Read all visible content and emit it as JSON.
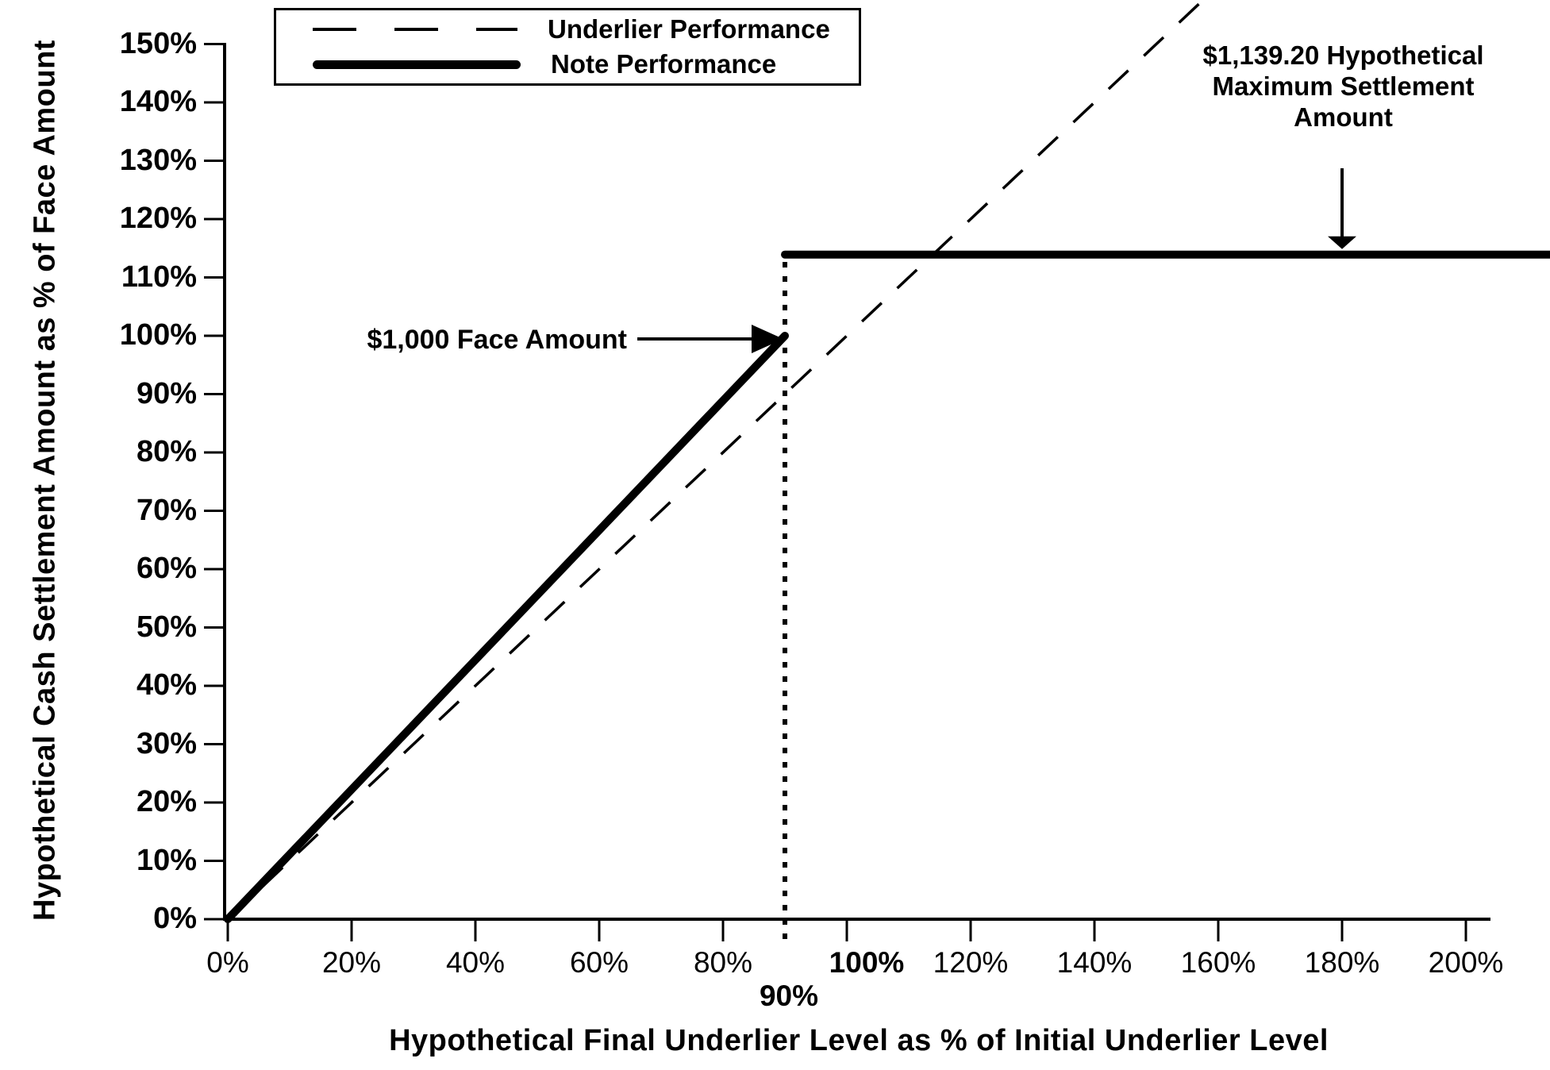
{
  "page": {
    "background": "#ffffff",
    "ink": "#000000"
  },
  "chart_data": {
    "type": "line",
    "title": "",
    "xlabel": "Hypothetical Final Underlier Level as % of Initial Underlier Level",
    "ylabel": "Hypothetical Cash Settlement Amount as % of Face Amount",
    "xlim": [
      0,
      208
    ],
    "ylim": [
      0,
      150
    ],
    "grid": false,
    "x_axis": {
      "title": "Hypothetical Final Underlier Level as % of Initial Underlier Level",
      "ticks": [
        {
          "value": 0,
          "label": "0%",
          "bold": false
        },
        {
          "value": 20,
          "label": "20%",
          "bold": false
        },
        {
          "value": 40,
          "label": "40%",
          "bold": false
        },
        {
          "value": 60,
          "label": "60%",
          "bold": false
        },
        {
          "value": 80,
          "label": "80%",
          "bold": false
        },
        {
          "value": 100,
          "label": "100%",
          "bold": true
        },
        {
          "value": 120,
          "label": "120%",
          "bold": false
        },
        {
          "value": 140,
          "label": "140%",
          "bold": false
        },
        {
          "value": 160,
          "label": "160%",
          "bold": false
        },
        {
          "value": 180,
          "label": "180%",
          "bold": false
        },
        {
          "value": 200,
          "label": "200%",
          "bold": false
        }
      ],
      "extra_labels": [
        {
          "value": 90,
          "label": "90%",
          "bold": true
        }
      ]
    },
    "y_axis": {
      "title": "Hypothetical Cash Settlement Amount as % of Face Amount",
      "ticks": [
        {
          "value": 0,
          "label": "0%"
        },
        {
          "value": 10,
          "label": "10%"
        },
        {
          "value": 20,
          "label": "20%"
        },
        {
          "value": 30,
          "label": "30%"
        },
        {
          "value": 40,
          "label": "40%"
        },
        {
          "value": 50,
          "label": "50%"
        },
        {
          "value": 60,
          "label": "60%"
        },
        {
          "value": 70,
          "label": "70%"
        },
        {
          "value": 80,
          "label": "80%"
        },
        {
          "value": 90,
          "label": "90%"
        },
        {
          "value": 100,
          "label": "100%"
        },
        {
          "value": 110,
          "label": "110%"
        },
        {
          "value": 120,
          "label": "120%"
        },
        {
          "value": 130,
          "label": "130%"
        },
        {
          "value": 140,
          "label": "140%"
        },
        {
          "value": 150,
          "label": "150%"
        }
      ]
    },
    "legend": {
      "position": "top-left",
      "entries": [
        {
          "label": "Underlier Performance",
          "style": "dashed"
        },
        {
          "label": "Note Performance",
          "style": "solid-thick"
        }
      ]
    },
    "series": [
      {
        "name": "Underlier Performance",
        "style": "dashed",
        "segments": [
          [
            {
              "x": 0,
              "y": 0
            },
            {
              "x": 157.5,
              "y": 157.5
            }
          ]
        ]
      },
      {
        "name": "Note Performance",
        "style": "solid-thick",
        "segments": [
          [
            {
              "x": 0,
              "y": 0
            },
            {
              "x": 90,
              "y": 100
            }
          ],
          [
            {
              "x": 90,
              "y": 113.92
            },
            {
              "x": 213.6,
              "y": 113.92
            }
          ]
        ]
      }
    ],
    "reference_lines": [
      {
        "type": "vertical-dotted",
        "x": 90,
        "from_y": 0,
        "to_y": 113.92,
        "label": "90%"
      }
    ],
    "annotations": [
      {
        "id": "face-amount",
        "text": "$1,000 Face Amount",
        "arrow": "right",
        "target": {
          "x": 90,
          "y": 100
        }
      },
      {
        "id": "max-settlement",
        "text": "$1,139.20 Hypothetical Maximum Settlement Amount",
        "lines": [
          "$1,139.20 Hypothetical",
          "Maximum Settlement",
          "Amount"
        ],
        "arrow": "down",
        "target": {
          "x": 180,
          "y": 113.92
        }
      }
    ]
  }
}
